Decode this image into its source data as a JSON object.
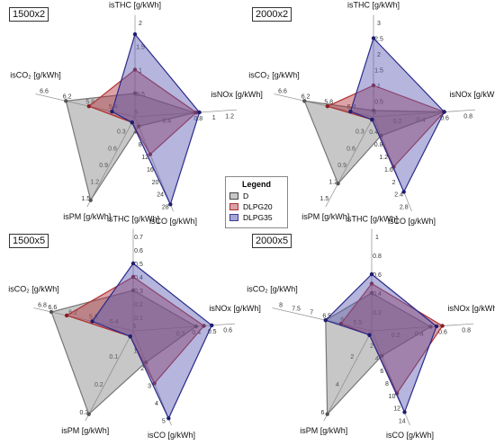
{
  "axes": [
    {
      "key": "THC",
      "text": "isTHC [g/kWh]"
    },
    {
      "key": "NOx",
      "text": "isNOx [g/kWh]"
    },
    {
      "key": "CO",
      "text": "isCO [g/kWh]"
    },
    {
      "key": "PM",
      "text": "isPM [g/kWh]"
    },
    {
      "key": "CO2",
      "text": "isCO₂ [g/kWh]"
    }
  ],
  "legend": {
    "title": "Legend",
    "items": [
      {
        "label": "D",
        "color": "#9a9a9a"
      },
      {
        "label": "DLPG20",
        "color": "#b03030"
      },
      {
        "label": "DLPG35",
        "color": "#3a3a9a"
      }
    ]
  },
  "chart_data": [
    {
      "type": "radar",
      "title": "1500x2",
      "axes": [
        "THC",
        "NOx",
        "CO",
        "PM",
        "CO2"
      ],
      "ticks": {
        "THC": [
          "0.5",
          "1",
          "1.5",
          "2"
        ],
        "NOx": [
          "0.4",
          "0.8",
          "1",
          "1.2"
        ],
        "CO": [
          "4",
          "8",
          "12",
          "16",
          "20",
          "24",
          "28"
        ],
        "PM": [
          "0.3",
          "0.6",
          "0.9",
          "1.2",
          "1.5"
        ],
        "CO2": [
          "5",
          "5.4",
          "5.8",
          "6.2",
          "6.6"
        ]
      },
      "ranges": {
        "THC": [
          0,
          2
        ],
        "NOx": [
          0,
          1.2
        ],
        "CO": [
          0,
          28
        ],
        "PM": [
          0,
          1.5
        ],
        "CO2": [
          5,
          6.6
        ]
      },
      "series": [
        {
          "name": "D",
          "values": {
            "THC": 0.5,
            "NOx": 0.76,
            "CO": 3,
            "PM": 1.5,
            "CO2": 6.2
          }
        },
        {
          "name": "DLPG20",
          "values": {
            "THC": 1.0,
            "NOx": 0.78,
            "CO": 12,
            "PM": 0.1,
            "CO2": 5.8
          }
        },
        {
          "name": "DLPG35",
          "values": {
            "THC": 1.75,
            "NOx": 0.82,
            "CO": 28,
            "PM": 0.1,
            "CO2": 5.4
          }
        }
      ]
    },
    {
      "type": "radar",
      "title": "2000x2",
      "axes": [
        "THC",
        "NOx",
        "CO",
        "PM",
        "CO2"
      ],
      "ticks": {
        "THC": [
          "0.5",
          "1",
          "1.5",
          "2",
          "2.5",
          "3"
        ],
        "NOx": [
          "0.2",
          "0.4",
          "0.6",
          "0.8"
        ],
        "CO": [
          "0.4",
          "0.8",
          "1.2",
          "1.6",
          "2",
          "2.4",
          "2.8"
        ],
        "PM": [
          "0.3",
          "0.6",
          "0.9",
          "1.2",
          "1.5"
        ],
        "CO2": [
          "5",
          "5.4",
          "5.8",
          "6.2",
          "6.6"
        ]
      },
      "ranges": {
        "THC": [
          0,
          3
        ],
        "NOx": [
          0,
          0.8
        ],
        "CO": [
          0,
          2.8
        ],
        "PM": [
          0,
          1.5
        ],
        "CO2": [
          5,
          6.6
        ]
      },
      "series": [
        {
          "name": "D",
          "values": {
            "THC": 0.2,
            "NOx": 0.6,
            "CO": 0.6,
            "PM": 1.2,
            "CO2": 6.2
          }
        },
        {
          "name": "DLPG20",
          "values": {
            "THC": 1.0,
            "NOx": 0.6,
            "CO": 1.6,
            "PM": 0.05,
            "CO2": 5.8
          }
        },
        {
          "name": "DLPG35",
          "values": {
            "THC": 2.5,
            "NOx": 0.6,
            "CO": 2.4,
            "PM": 0.05,
            "CO2": 5.4
          }
        }
      ]
    },
    {
      "type": "radar",
      "title": "1500x5",
      "axes": [
        "THC",
        "NOx",
        "CO",
        "PM",
        "CO2"
      ],
      "ticks": {
        "THC": [
          "0.1",
          "0.2",
          "0.3",
          "0.4",
          "0.5",
          "0.6",
          "0.7"
        ],
        "NOx": [
          "0.3",
          "0.4",
          "0.5",
          "0.6"
        ],
        "CO": [
          "1",
          "2",
          "3",
          "4",
          "5"
        ],
        "PM": [
          "0.1",
          "0.2",
          "0.3"
        ],
        "CO2": [
          "5",
          "5.4",
          "5.8",
          "6.2",
          "6.6",
          "6.8"
        ]
      },
      "ranges": {
        "THC": [
          0,
          0.7
        ],
        "NOx": [
          0,
          0.6
        ],
        "CO": [
          0,
          5
        ],
        "PM": [
          0,
          0.3
        ],
        "CO2": [
          5,
          6.8
        ]
      },
      "series": [
        {
          "name": "D",
          "values": {
            "THC": 0.3,
            "NOx": 0.4,
            "CO": 1.8,
            "PM": 0.3,
            "CO2": 6.6
          }
        },
        {
          "name": "DLPG20",
          "values": {
            "THC": 0.4,
            "NOx": 0.45,
            "CO": 3.0,
            "PM": 0.02,
            "CO2": 6.3
          }
        },
        {
          "name": "DLPG35",
          "values": {
            "THC": 0.5,
            "NOx": 0.5,
            "CO": 5.0,
            "PM": 0.02,
            "CO2": 5.8
          }
        }
      ]
    },
    {
      "type": "radar",
      "title": "2000x5",
      "axes": [
        "THC",
        "NOx",
        "CO",
        "PM",
        "CO2"
      ],
      "ticks": {
        "THC": [
          "0.2",
          "0.4",
          "0.6",
          "0.8",
          "1"
        ],
        "NOx": [
          "0.2",
          "0.4",
          "0.6",
          "0.8"
        ],
        "CO": [
          "2",
          "4",
          "6",
          "8",
          "10",
          "12",
          "14"
        ],
        "PM": [
          "2",
          "4",
          "6"
        ],
        "CO2": [
          "5.5",
          "6",
          "6.5",
          "7",
          "7.5",
          "8"
        ]
      },
      "ranges": {
        "THC": [
          0,
          1
        ],
        "NOx": [
          0,
          0.8
        ],
        "CO": [
          0,
          14
        ],
        "PM": [
          0,
          6
        ],
        "CO2": [
          5,
          8
        ]
      },
      "series": [
        {
          "name": "D",
          "values": {
            "THC": 0.4,
            "NOx": 0.5,
            "CO": 4,
            "PM": 6,
            "CO2": 6.5
          }
        },
        {
          "name": "DLPG20",
          "values": {
            "THC": 0.5,
            "NOx": 0.6,
            "CO": 10,
            "PM": 0.3,
            "CO2": 6.0
          }
        },
        {
          "name": "DLPG35",
          "values": {
            "THC": 0.6,
            "NOx": 0.55,
            "CO": 13,
            "PM": 0.3,
            "CO2": 6.5
          }
        }
      ]
    }
  ]
}
